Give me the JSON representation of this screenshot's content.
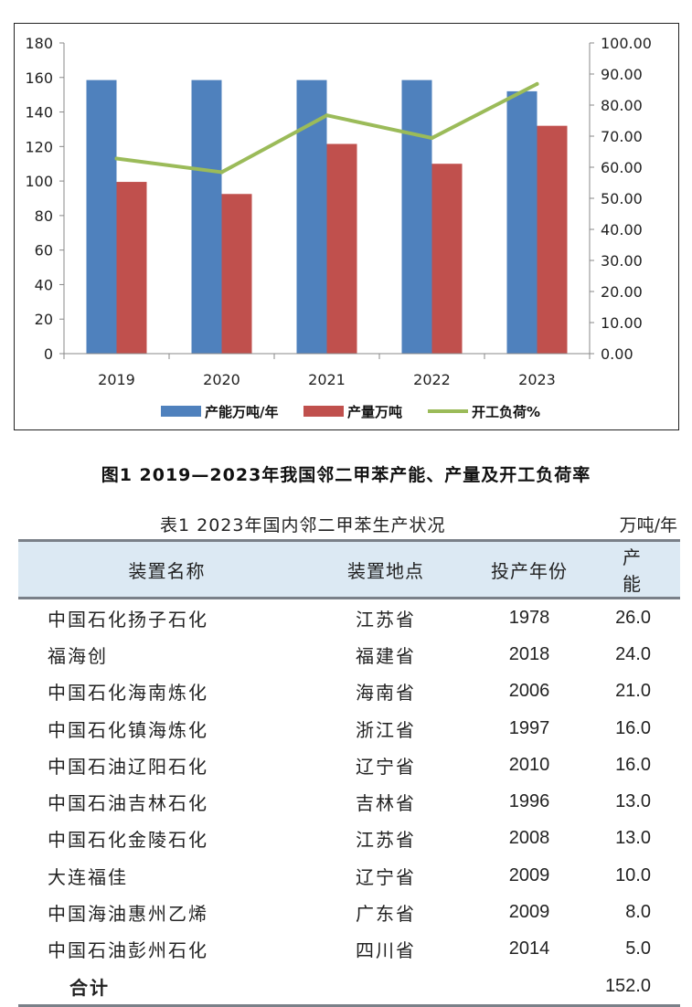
{
  "chart_data": {
    "type": "bar",
    "categories": [
      "2019",
      "2020",
      "2021",
      "2022",
      "2023"
    ],
    "series": [
      {
        "name": "产能万吨/年",
        "kind": "bar",
        "axis": "left",
        "color": "#4f81bd",
        "values": [
          158.5,
          158.5,
          158.5,
          158.5,
          152
        ]
      },
      {
        "name": "产量万吨",
        "kind": "bar",
        "axis": "left",
        "color": "#c0504d",
        "values": [
          99.5,
          92.5,
          121.5,
          110,
          132
        ]
      },
      {
        "name": "开工负荷%",
        "kind": "line",
        "axis": "right",
        "color": "#9bbb59",
        "values": [
          62.8,
          58.4,
          76.7,
          69.4,
          86.8
        ]
      }
    ],
    "y_left": {
      "min": 0,
      "max": 180,
      "step": 20,
      "ticks": [
        "0",
        "20",
        "40",
        "60",
        "80",
        "100",
        "120",
        "140",
        "160",
        "180"
      ]
    },
    "y_right": {
      "min": 0,
      "max": 100,
      "step": 10,
      "ticks": [
        "0.00",
        "10.00",
        "20.00",
        "30.00",
        "40.00",
        "50.00",
        "60.00",
        "70.00",
        "80.00",
        "90.00",
        "100.00"
      ]
    },
    "grid": false,
    "legend": "bottom"
  },
  "figure_caption": "图1 2019—2023年我国邻二甲苯产能、产量及开工负荷率",
  "table": {
    "title": "表1 2023年国内邻二甲苯生产状况",
    "unit": "万吨/年",
    "headers": [
      "装置名称",
      "装置地点",
      "投产年份",
      "产能"
    ],
    "rows": [
      [
        "中国石化扬子石化",
        "江苏省",
        "1978",
        "26.0"
      ],
      [
        "福海创",
        "福建省",
        "2018",
        "24.0"
      ],
      [
        "中国石化海南炼化",
        "海南省",
        "2006",
        "21.0"
      ],
      [
        "中国石化镇海炼化",
        "浙江省",
        "1997",
        "16.0"
      ],
      [
        "中国石油辽阳石化",
        "辽宁省",
        "2010",
        "16.0"
      ],
      [
        "中国石油吉林石化",
        "吉林省",
        "1996",
        "13.0"
      ],
      [
        "中国石化金陵石化",
        "江苏省",
        "2008",
        "13.0"
      ],
      [
        "大连福佳",
        "辽宁省",
        "2009",
        "10.0"
      ],
      [
        "中国海油惠州乙烯",
        "广东省",
        "2009",
        "8.0"
      ],
      [
        "中国石油彭州石化",
        "四川省",
        "2014",
        "5.0"
      ]
    ],
    "total_label": "合计",
    "total_value": "152.0"
  }
}
